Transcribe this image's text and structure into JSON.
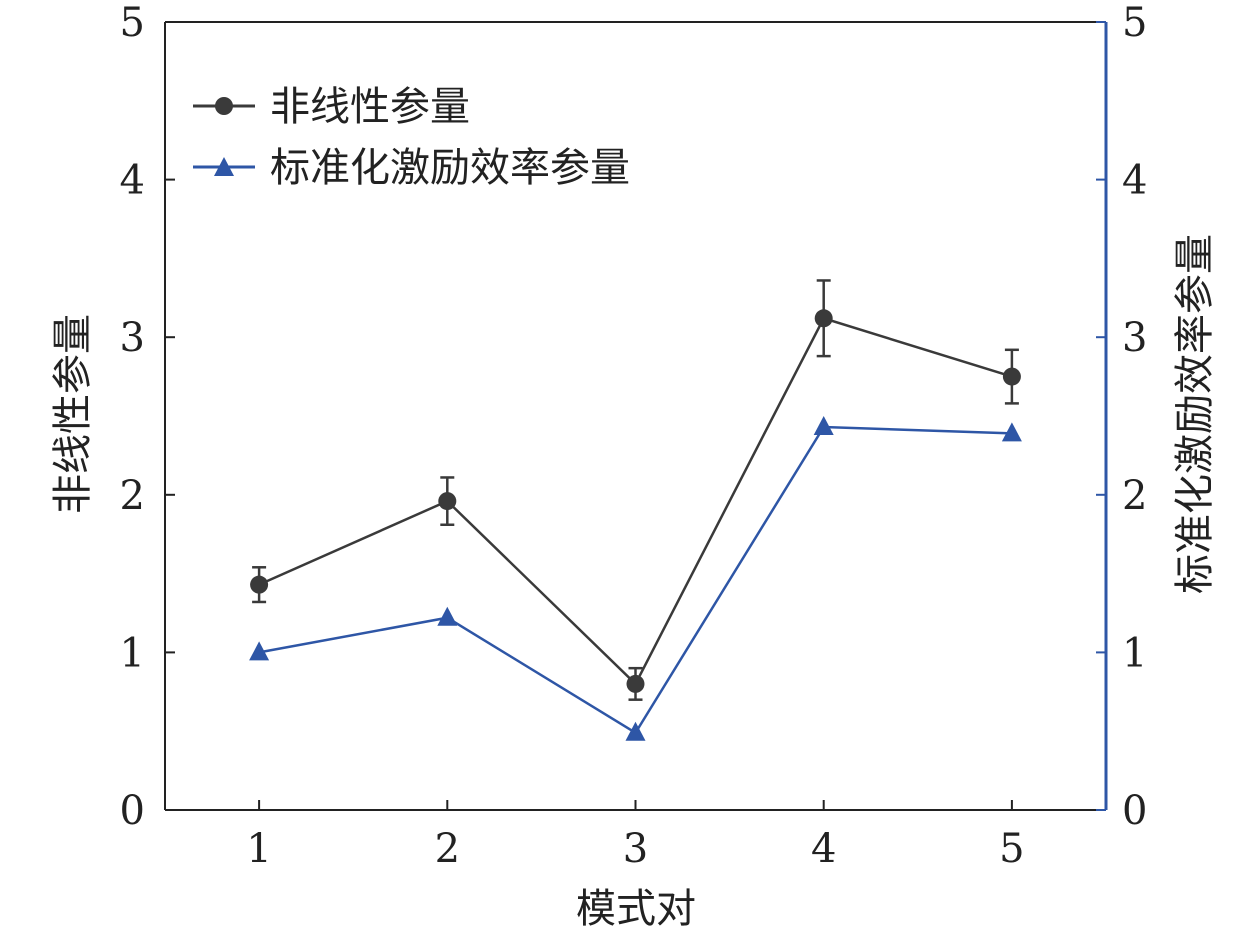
{
  "chart_data": {
    "type": "line",
    "xlabel": "模式对",
    "ylabel_left": "非线性参量",
    "ylabel_right": "标准化激励效率参量",
    "x": [
      1,
      2,
      3,
      4,
      5
    ],
    "xlim": [
      0.5,
      5.5
    ],
    "ylim_left": [
      0,
      5
    ],
    "ylim_right": [
      0,
      5
    ],
    "x_ticks": [
      1,
      2,
      3,
      4,
      5
    ],
    "y_ticks": [
      0,
      1,
      2,
      3,
      4,
      5
    ],
    "grid": false,
    "legend_position": "top-left",
    "series": [
      {
        "name": "非线性参量",
        "axis": "left",
        "marker": "circle",
        "color": "#3a3a3a",
        "values": [
          1.43,
          1.96,
          0.8,
          3.12,
          2.75
        ],
        "error": [
          0.11,
          0.15,
          0.1,
          0.24,
          0.17
        ]
      },
      {
        "name": "标准化激励效率参量",
        "axis": "right",
        "marker": "triangle",
        "color": "#2e56a6",
        "values": [
          1.0,
          1.22,
          0.49,
          2.43,
          2.39
        ]
      }
    ],
    "colors": {
      "left_axis": "#222222",
      "right_axis": "#2e56a6"
    }
  }
}
